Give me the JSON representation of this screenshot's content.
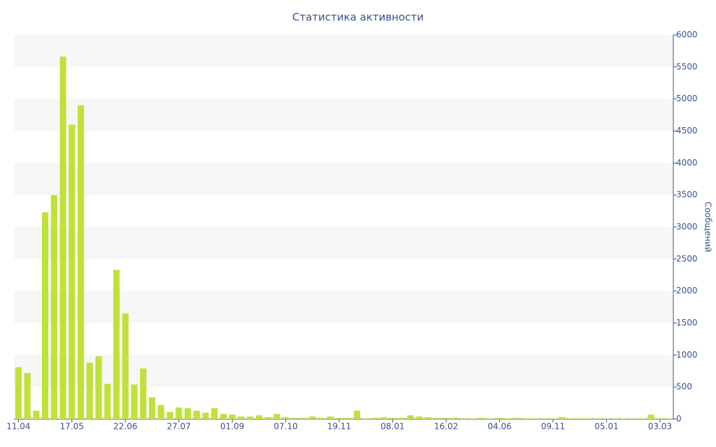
{
  "chart_data": {
    "type": "bar",
    "title": "Статистика активности",
    "y_label": "Сообщений",
    "categories": [
      "11.04",
      null,
      null,
      null,
      null,
      null,
      "17.05",
      null,
      null,
      null,
      null,
      null,
      "22.06",
      null,
      null,
      null,
      null,
      null,
      "27.07",
      null,
      null,
      null,
      null,
      null,
      "01.09",
      null,
      null,
      null,
      null,
      null,
      "07.10",
      null,
      null,
      null,
      null,
      null,
      "19.11",
      null,
      null,
      null,
      null,
      null,
      "08.01",
      null,
      null,
      null,
      null,
      null,
      "16.02",
      null,
      null,
      null,
      null,
      null,
      "04.06",
      null,
      null,
      null,
      null,
      null,
      "09.11",
      null,
      null,
      null,
      null,
      null,
      "05.01",
      null,
      null,
      null,
      null,
      null,
      "03.03",
      null
    ],
    "values": [
      810,
      720,
      130,
      3230,
      3500,
      5660,
      4600,
      4900,
      880,
      980,
      550,
      2330,
      1650,
      540,
      790,
      340,
      220,
      110,
      180,
      170,
      130,
      100,
      170,
      80,
      70,
      40,
      40,
      60,
      30,
      80,
      30,
      20,
      20,
      40,
      20,
      40,
      20,
      20,
      130,
      10,
      20,
      30,
      20,
      20,
      60,
      40,
      30,
      20,
      20,
      20,
      10,
      10,
      20,
      10,
      20,
      10,
      20,
      10,
      10,
      10,
      10,
      30,
      10,
      10,
      10,
      10,
      10,
      10,
      10,
      10,
      10,
      70,
      10,
      10
    ],
    "color": "#bfe23a",
    "ylim": [
      0,
      6000
    ],
    "yticks": [
      0,
      500,
      1000,
      1500,
      2000,
      2500,
      3000,
      3500,
      4000,
      4500,
      5000,
      5500,
      6000
    ],
    "grid": true,
    "y_axis_side": "right"
  }
}
